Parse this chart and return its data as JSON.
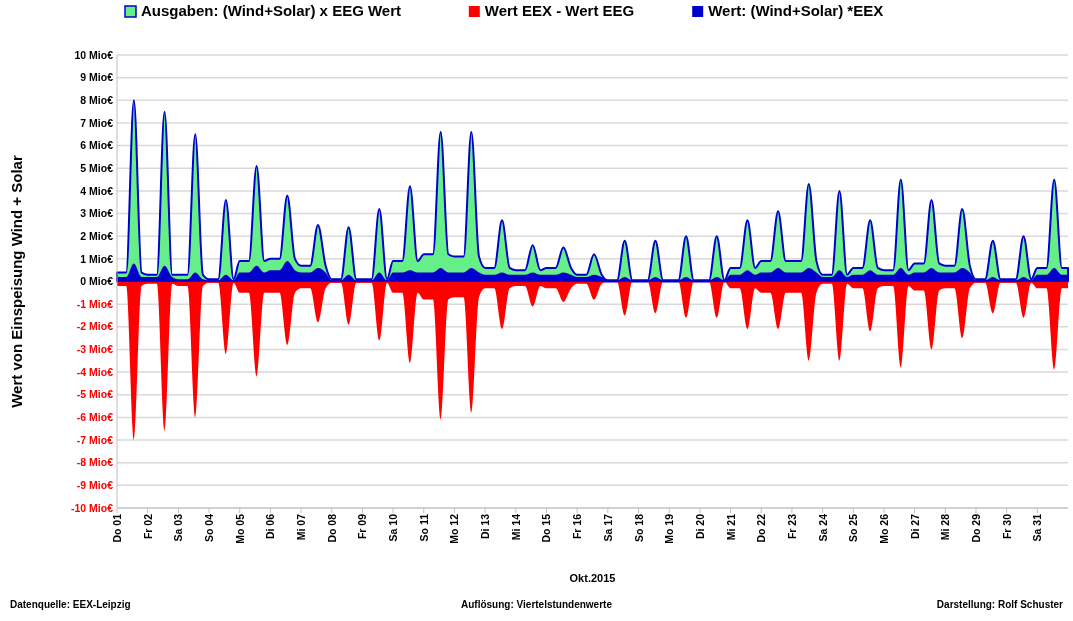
{
  "chart_data": {
    "type": "area",
    "xlabel": "Okt.2015",
    "ylabel": "Wert von Einspeisung Wind + Solar",
    "annotations": [
      "Datenquelle:  EEX-Leipzig",
      "Auflösung: Viertelstundenwerte",
      "Darstellung: Rolf Schuster"
    ],
    "x": [
      "2015-10-01",
      "2015-10-01T07:12",
      "2015-10-01T13:12",
      "2015-10-01T19:12",
      "2015-10-02",
      "2015-10-02T07:12",
      "2015-10-02T13:12",
      "2015-10-02T19:12",
      "2015-10-03",
      "2015-10-03T07:12",
      "2015-10-03T13:12",
      "2015-10-03T19:12",
      "2015-10-04",
      "2015-10-04T07:12",
      "2015-10-04T13:12",
      "2015-10-04T19:12",
      "2015-10-05",
      "2015-10-05T07:12",
      "2015-10-05T13:12",
      "2015-10-05T19:12",
      "2015-10-06",
      "2015-10-06T07:12",
      "2015-10-06T13:12",
      "2015-10-06T19:12",
      "2015-10-07",
      "2015-10-07T07:12",
      "2015-10-07T13:12",
      "2015-10-07T19:12",
      "2015-10-08",
      "2015-10-08T07:12",
      "2015-10-08T13:12",
      "2015-10-08T19:12",
      "2015-10-09",
      "2015-10-09T07:12",
      "2015-10-09T13:12",
      "2015-10-09T19:12",
      "2015-10-10",
      "2015-10-10T07:12",
      "2015-10-10T13:12",
      "2015-10-10T19:12",
      "2015-10-11",
      "2015-10-11T07:12",
      "2015-10-11T13:12",
      "2015-10-11T19:12",
      "2015-10-12",
      "2015-10-12T07:12",
      "2015-10-12T13:12",
      "2015-10-12T19:12",
      "2015-10-13",
      "2015-10-13T07:12",
      "2015-10-13T13:12",
      "2015-10-13T19:12",
      "2015-10-14",
      "2015-10-14T07:12",
      "2015-10-14T13:12",
      "2015-10-14T19:12",
      "2015-10-15",
      "2015-10-15T07:12",
      "2015-10-15T13:12",
      "2015-10-15T19:12",
      "2015-10-16",
      "2015-10-16T07:12",
      "2015-10-16T13:12",
      "2015-10-16T19:12",
      "2015-10-17",
      "2015-10-17T07:12",
      "2015-10-17T13:12",
      "2015-10-17T19:12",
      "2015-10-18",
      "2015-10-18T07:12",
      "2015-10-18T13:12",
      "2015-10-18T19:12",
      "2015-10-19",
      "2015-10-19T07:12",
      "2015-10-19T13:12",
      "2015-10-19T19:12",
      "2015-10-20",
      "2015-10-20T07:12",
      "2015-10-20T13:12",
      "2015-10-20T19:12",
      "2015-10-21",
      "2015-10-21T07:12",
      "2015-10-21T13:12",
      "2015-10-21T19:12",
      "2015-10-22",
      "2015-10-22T07:12",
      "2015-10-22T13:12",
      "2015-10-22T19:12",
      "2015-10-23",
      "2015-10-23T07:12",
      "2015-10-23T13:12",
      "2015-10-23T19:12",
      "2015-10-24",
      "2015-10-24T07:12",
      "2015-10-24T13:12",
      "2015-10-24T19:12",
      "2015-10-25",
      "2015-10-25T07:12",
      "2015-10-25T13:12",
      "2015-10-25T19:12",
      "2015-10-26",
      "2015-10-26T07:12",
      "2015-10-26T13:12",
      "2015-10-26T19:12",
      "2015-10-27",
      "2015-10-27T07:12",
      "2015-10-27T13:12",
      "2015-10-27T19:12",
      "2015-10-28",
      "2015-10-28T07:12",
      "2015-10-28T13:12",
      "2015-10-28T19:12",
      "2015-10-29",
      "2015-10-29T07:12",
      "2015-10-29T13:12",
      "2015-10-29T19:12",
      "2015-10-30",
      "2015-10-30T07:12",
      "2015-10-30T13:12",
      "2015-10-30T19:12",
      "2015-10-31",
      "2015-10-31T07:12",
      "2015-10-31T13:12",
      "2015-10-31T19:12",
      "2015-11-01"
    ],
    "series": [
      {
        "name": "Ausgaben: (Wind+Solar) x EEG Wert",
        "color": "#66ee88",
        "values": [
          0.4,
          0.4,
          8.0,
          0.4,
          0.3,
          0.3,
          7.5,
          0.3,
          0.3,
          0.3,
          6.5,
          0.3,
          0.1,
          0.1,
          3.6,
          0.1,
          0.9,
          0.9,
          5.1,
          0.9,
          1.0,
          1.0,
          3.8,
          1.0,
          0.7,
          0.7,
          2.5,
          0.7,
          0.1,
          0.1,
          2.4,
          0.1,
          0.1,
          0.1,
          3.2,
          0.1,
          0.9,
          0.9,
          4.2,
          0.9,
          1.2,
          1.2,
          6.6,
          1.2,
          1.1,
          1.1,
          6.6,
          1.1,
          0.6,
          0.6,
          2.7,
          0.6,
          0.5,
          0.5,
          1.6,
          0.5,
          0.6,
          0.6,
          1.5,
          0.6,
          0.3,
          0.3,
          1.2,
          0.3,
          0.05,
          0.05,
          1.8,
          0.05,
          0.05,
          0.05,
          1.8,
          0.05,
          0.05,
          0.05,
          2.0,
          0.05,
          0.05,
          0.05,
          2.0,
          0.05,
          0.6,
          0.6,
          2.7,
          0.6,
          0.9,
          0.9,
          3.1,
          0.9,
          0.9,
          0.9,
          4.3,
          0.9,
          0.3,
          0.3,
          4.0,
          0.3,
          0.6,
          0.6,
          2.7,
          0.6,
          0.5,
          0.5,
          4.5,
          0.5,
          0.8,
          0.8,
          3.6,
          0.8,
          0.7,
          0.7,
          3.2,
          0.7,
          0.1,
          0.1,
          1.8,
          0.1,
          0.1,
          0.1,
          2.0,
          0.1,
          0.6,
          0.6,
          4.5,
          0.6,
          0.6
        ]
      },
      {
        "name": "Wert EEX - Wert EEG",
        "color": "#ff0000",
        "values": [
          -0.2,
          -0.2,
          -7.0,
          -0.2,
          -0.1,
          -0.1,
          -6.6,
          -0.1,
          -0.2,
          -0.2,
          -6.0,
          -0.2,
          -0.05,
          -0.05,
          -3.2,
          -0.05,
          -0.5,
          -0.5,
          -4.2,
          -0.5,
          -0.5,
          -0.5,
          -2.8,
          -0.5,
          -0.3,
          -0.3,
          -1.8,
          -0.3,
          -0.05,
          -0.05,
          -1.9,
          -0.05,
          -0.05,
          -0.05,
          -2.6,
          -0.05,
          -0.5,
          -0.5,
          -3.6,
          -0.5,
          -0.8,
          -0.8,
          -6.1,
          -0.8,
          -0.7,
          -0.7,
          -5.8,
          -0.7,
          -0.3,
          -0.3,
          -2.1,
          -0.3,
          -0.2,
          -0.2,
          -1.1,
          -0.2,
          -0.3,
          -0.3,
          -0.9,
          -0.3,
          -0.1,
          -0.1,
          -0.8,
          -0.1,
          0,
          0,
          -1.5,
          0,
          0,
          0,
          -1.4,
          0,
          0,
          0,
          -1.6,
          0,
          0,
          0,
          -1.6,
          0,
          -0.3,
          -0.3,
          -2.1,
          -0.3,
          -0.5,
          -0.5,
          -2.1,
          -0.5,
          -0.5,
          -0.5,
          -3.5,
          -0.5,
          -0.1,
          -0.1,
          -3.5,
          -0.1,
          -0.3,
          -0.3,
          -2.2,
          -0.3,
          -0.2,
          -0.2,
          -3.8,
          -0.2,
          -0.4,
          -0.4,
          -3.0,
          -0.4,
          -0.3,
          -0.3,
          -2.5,
          -0.3,
          -0.05,
          -0.05,
          -1.4,
          -0.05,
          -0.05,
          -0.05,
          -1.6,
          -0.05,
          -0.3,
          -0.3,
          -3.9,
          -0.3,
          -0.3
        ]
      },
      {
        "name": "Wert: (Wind+Solar) *EEX",
        "color": "#0000cc",
        "values": [
          0.2,
          0.2,
          0.8,
          0.2,
          0.2,
          0.2,
          0.7,
          0.2,
          0.1,
          0.1,
          0.4,
          0.1,
          0.05,
          0.05,
          0.3,
          0.05,
          0.4,
          0.4,
          0.7,
          0.4,
          0.5,
          0.5,
          0.9,
          0.5,
          0.4,
          0.4,
          0.6,
          0.4,
          0.05,
          0.05,
          0.3,
          0.05,
          0.05,
          0.05,
          0.4,
          0.05,
          0.4,
          0.4,
          0.5,
          0.4,
          0.4,
          0.4,
          0.6,
          0.4,
          0.4,
          0.4,
          0.6,
          0.4,
          0.3,
          0.3,
          0.4,
          0.3,
          0.3,
          0.3,
          0.4,
          0.3,
          0.3,
          0.3,
          0.4,
          0.3,
          0.2,
          0.2,
          0.3,
          0.2,
          0.05,
          0.05,
          0.2,
          0.05,
          0.05,
          0.05,
          0.2,
          0.05,
          0.05,
          0.05,
          0.2,
          0.05,
          0.05,
          0.05,
          0.2,
          0.05,
          0.3,
          0.3,
          0.5,
          0.3,
          0.4,
          0.4,
          0.6,
          0.4,
          0.4,
          0.4,
          0.6,
          0.4,
          0.2,
          0.2,
          0.5,
          0.2,
          0.3,
          0.3,
          0.5,
          0.3,
          0.3,
          0.3,
          0.6,
          0.3,
          0.4,
          0.4,
          0.6,
          0.4,
          0.4,
          0.4,
          0.6,
          0.4,
          0.05,
          0.05,
          0.2,
          0.05,
          0.05,
          0.05,
          0.2,
          0.05,
          0.3,
          0.3,
          0.6,
          0.3,
          0.3
        ]
      }
    ],
    "xlim": [
      "2015-10-01",
      "2015-11-01"
    ],
    "xticks": [
      {
        "value": "2015-10-01",
        "label": "Do 01"
      },
      {
        "value": "2015-10-02",
        "label": "Fr 02"
      },
      {
        "value": "2015-10-03",
        "label": "Sa 03"
      },
      {
        "value": "2015-10-04",
        "label": "So 04"
      },
      {
        "value": "2015-10-05",
        "label": "Mo 05"
      },
      {
        "value": "2015-10-06",
        "label": "Di 06"
      },
      {
        "value": "2015-10-07",
        "label": "Mi 07"
      },
      {
        "value": "2015-10-08",
        "label": "Do 08"
      },
      {
        "value": "2015-10-09",
        "label": "Fr 09"
      },
      {
        "value": "2015-10-10",
        "label": "Sa 10"
      },
      {
        "value": "2015-10-11",
        "label": "So 11"
      },
      {
        "value": "2015-10-12",
        "label": "Mo 12"
      },
      {
        "value": "2015-10-13",
        "label": "Di 13"
      },
      {
        "value": "2015-10-14",
        "label": "Mi 14"
      },
      {
        "value": "2015-10-15",
        "label": "Do 15"
      },
      {
        "value": "2015-10-16",
        "label": "Fr 16"
      },
      {
        "value": "2015-10-17",
        "label": "Sa 17"
      },
      {
        "value": "2015-10-18",
        "label": "So 18"
      },
      {
        "value": "2015-10-19",
        "label": "Mo 19"
      },
      {
        "value": "2015-10-20",
        "label": "Di 20"
      },
      {
        "value": "2015-10-21",
        "label": "Mi 21"
      },
      {
        "value": "2015-10-22",
        "label": "Do 22"
      },
      {
        "value": "2015-10-23",
        "label": "Fr 23"
      },
      {
        "value": "2015-10-24",
        "label": "Sa 24"
      },
      {
        "value": "2015-10-25",
        "label": "So 25"
      },
      {
        "value": "2015-10-26",
        "label": "Mo 26"
      },
      {
        "value": "2015-10-27",
        "label": "Di 27"
      },
      {
        "value": "2015-10-28",
        "label": "Mi 28"
      },
      {
        "value": "2015-10-29",
        "label": "Do 29"
      },
      {
        "value": "2015-10-30",
        "label": "Fr 30"
      },
      {
        "value": "2015-10-31",
        "label": "Sa 31"
      }
    ],
    "ylim": [
      -10,
      10
    ],
    "yticks": [
      {
        "value": 10,
        "label": "10 Mio€"
      },
      {
        "value": 9,
        "label": "9 Mio€"
      },
      {
        "value": 8,
        "label": "8 Mio€"
      },
      {
        "value": 7,
        "label": "7 Mio€"
      },
      {
        "value": 6,
        "label": "6 Mio€"
      },
      {
        "value": 5,
        "label": "5 Mio€"
      },
      {
        "value": 4,
        "label": "4 Mio€"
      },
      {
        "value": 3,
        "label": "3 Mio€"
      },
      {
        "value": 2,
        "label": "2 Mio€"
      },
      {
        "value": 1,
        "label": "1 Mio€"
      },
      {
        "value": 0,
        "label": "0 Mio€"
      },
      {
        "value": -1,
        "label": "-1 Mio€"
      },
      {
        "value": -2,
        "label": "-2 Mio€"
      },
      {
        "value": -3,
        "label": "-3 Mio€"
      },
      {
        "value": -4,
        "label": "-4 Mio€"
      },
      {
        "value": -5,
        "label": "-5 Mio€"
      },
      {
        "value": -6,
        "label": "-6 Mio€"
      },
      {
        "value": -7,
        "label": "-7 Mio€"
      },
      {
        "value": -8,
        "label": "-8 Mio€"
      },
      {
        "value": -9,
        "label": "-9 Mio€"
      },
      {
        "value": -10,
        "label": "-10 Mio€"
      }
    ],
    "grid": "y",
    "legend": "top"
  }
}
